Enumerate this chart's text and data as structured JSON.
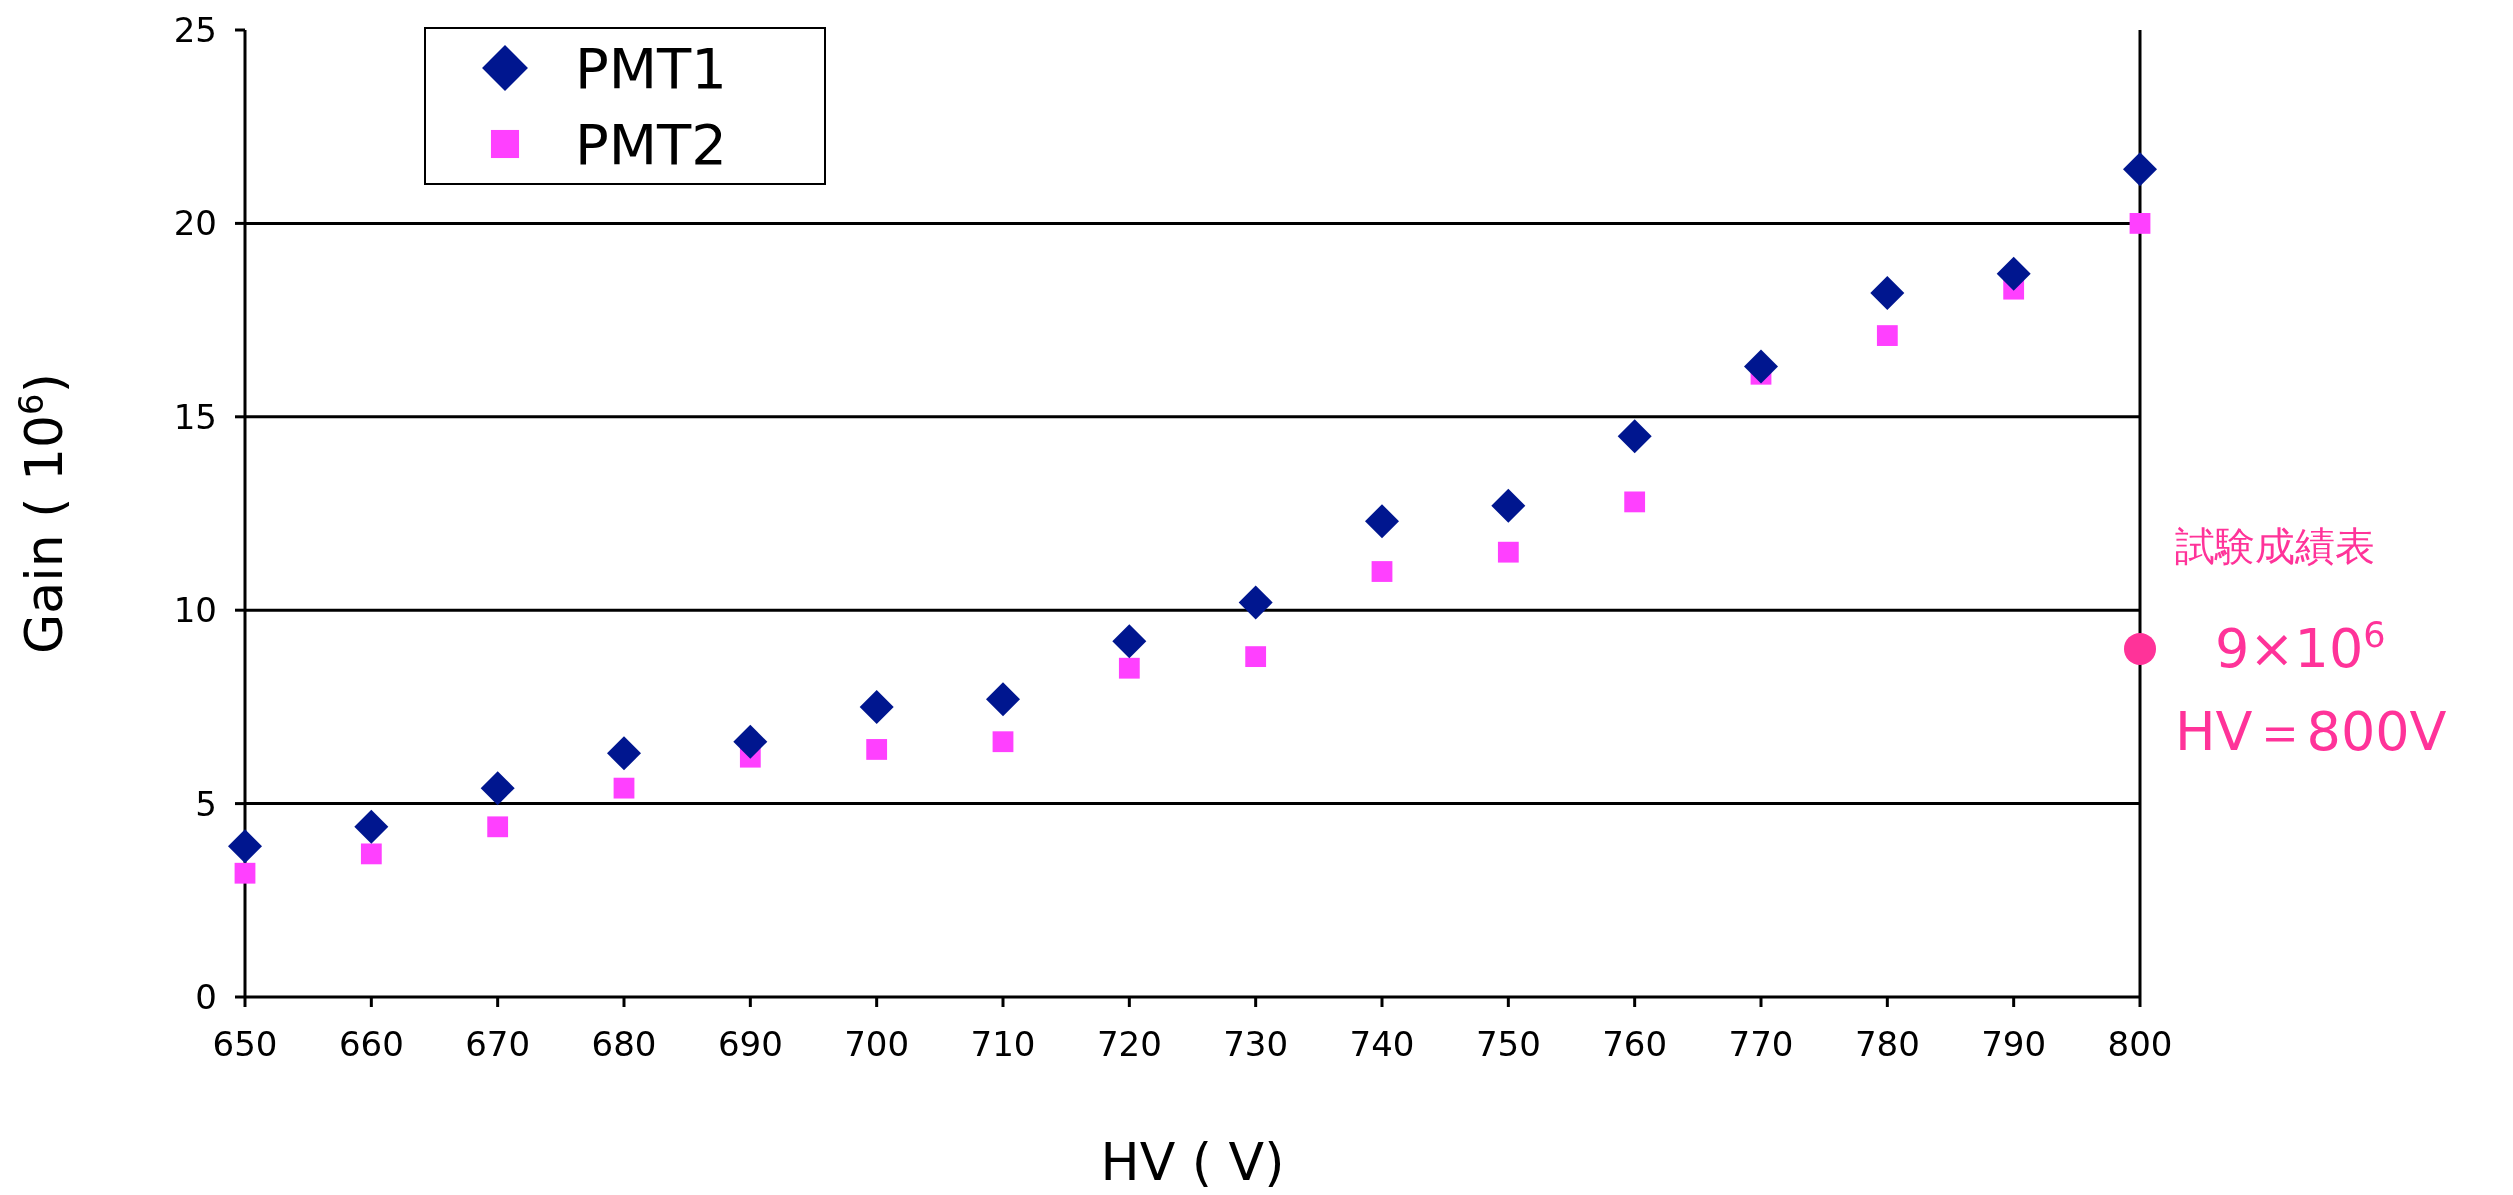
{
  "chart_data": {
    "type": "scatter",
    "xlabel": "HV ( V)",
    "ylabel": "Gain ( 10$^{6}$)",
    "xlim": [
      650,
      800
    ],
    "xticks": [
      650,
      660,
      670,
      680,
      690,
      700,
      710,
      720,
      730,
      740,
      750,
      760,
      770,
      780,
      790,
      800
    ],
    "ylim": [
      0,
      25
    ],
    "yticks": [
      0,
      5,
      10,
      15,
      20,
      25
    ],
    "grid": "y",
    "legend": "top left",
    "series": [
      {
        "name": "PMT1",
        "color": "#00168f",
        "marker": "diamond",
        "x": [
          650,
          660,
          670,
          680,
          690,
          700,
          710,
          720,
          730,
          740,
          750,
          760,
          770,
          780,
          790,
          800
        ],
        "values": [
          3.9,
          4.4,
          5.4,
          6.3,
          6.6,
          7.5,
          7.7,
          9.2,
          10.2,
          12.3,
          12.7,
          14.5,
          16.3,
          18.2,
          18.7,
          21.4
        ]
      },
      {
        "name": "PMT2",
        "color": "#ff40ff",
        "marker": "square",
        "x": [
          650,
          660,
          670,
          680,
          690,
          700,
          710,
          720,
          730,
          740,
          750,
          760,
          770,
          780,
          790,
          800
        ],
        "values": [
          3.2,
          3.7,
          4.4,
          5.4,
          6.2,
          6.4,
          6.6,
          8.5,
          8.8,
          11.0,
          11.5,
          12.8,
          16.1,
          17.1,
          18.3,
          20.0
        ]
      },
      {
        "color": "#ff3399",
        "marker": "circle",
        "x": [
          800
        ],
        "values": [
          9
        ]
      }
    ],
    "annotations": [
      "試験成績表",
      {
        "text": "9×10$^{6}$",
        "x": 800,
        "y": 9
      },
      "HV＝800V"
    ]
  }
}
